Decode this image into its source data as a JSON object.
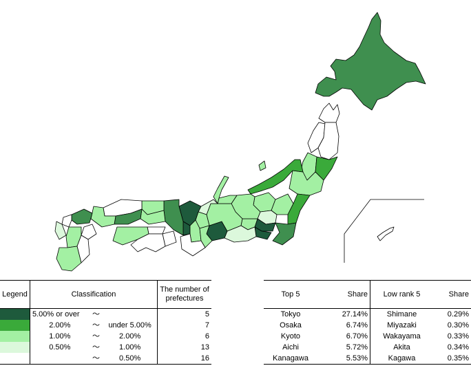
{
  "colors": {
    "class1": "#1e5a3c",
    "class2": "#3aaa3a",
    "class3": "#a3f0a3",
    "class4": "#dcf8dc",
    "class5": "#ffffff",
    "map_medium": "#3f8f4f"
  },
  "legend": {
    "header_legend": "Legend",
    "header_classification": "Classification",
    "header_count": "The number of prefectures",
    "rows": [
      {
        "from": "5.00% or over",
        "sep": "〜",
        "to": "",
        "count": "5"
      },
      {
        "from": "2.00%",
        "sep": "〜",
        "to": "under 5.00%",
        "count": "7"
      },
      {
        "from": "1.00%",
        "sep": "〜",
        "to": "2.00%",
        "count": "6"
      },
      {
        "from": "0.50%",
        "sep": "〜",
        "to": "1.00%",
        "count": "13"
      },
      {
        "from": "",
        "sep": "〜",
        "to": "0.50%",
        "count": "16"
      }
    ]
  },
  "ranking": {
    "header_top": "Top 5",
    "header_share": "Share",
    "header_low": "Low rank 5",
    "header_share2": "Share",
    "rows": [
      {
        "top": "Tokyo",
        "top_share": "27.14%",
        "low": "Shimane",
        "low_share": "0.29%"
      },
      {
        "top": "Osaka",
        "top_share": "6.74%",
        "low": "Miyazaki",
        "low_share": "0.30%"
      },
      {
        "top": "Kyoto",
        "top_share": "6.70%",
        "low": "Wakayama",
        "low_share": "0.33%"
      },
      {
        "top": "Aichi",
        "top_share": "5.72%",
        "low": "Akita",
        "low_share": "0.34%"
      },
      {
        "top": "Kanagawa",
        "top_share": "5.53%",
        "low": "Kagawa",
        "low_share": "0.35%"
      }
    ]
  }
}
